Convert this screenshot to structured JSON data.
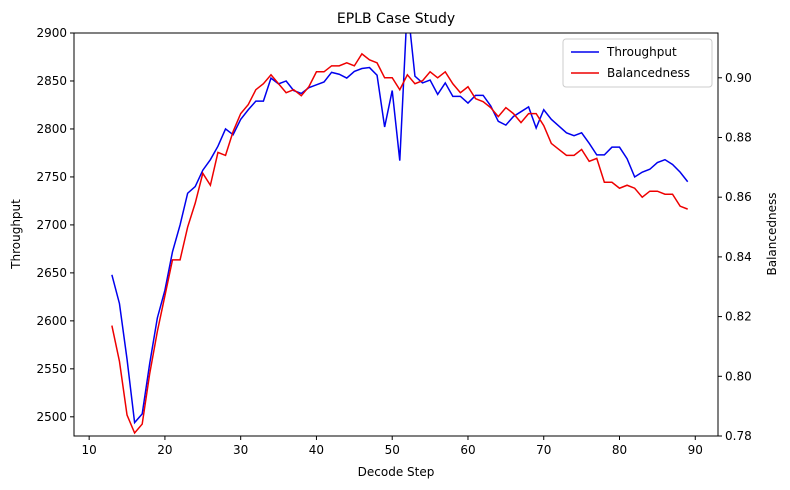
{
  "chart_data": {
    "type": "line",
    "title": "EPLB Case Study",
    "xlabel": "Decode Step",
    "ylabel": "Throughput",
    "y2label": "Balancedness",
    "xlim": [
      8,
      93
    ],
    "ylim": [
      2480,
      2900
    ],
    "y2lim": [
      0.78,
      0.915
    ],
    "xticks": [
      10,
      20,
      30,
      40,
      50,
      60,
      70,
      80,
      90
    ],
    "yticks": [
      2500,
      2550,
      2600,
      2650,
      2700,
      2750,
      2800,
      2850,
      2900
    ],
    "y2ticks": [
      0.78,
      0.8,
      0.82,
      0.84,
      0.86,
      0.88,
      0.9
    ],
    "y2tick_labels": [
      "0.78",
      "0.80",
      "0.82",
      "0.84",
      "0.86",
      "0.88",
      "0.90"
    ],
    "legend": "top-right",
    "grid": false,
    "x": [
      13,
      14,
      15,
      16,
      17,
      18,
      19,
      20,
      21,
      22,
      23,
      24,
      25,
      26,
      27,
      28,
      29,
      30,
      31,
      32,
      33,
      34,
      35,
      36,
      37,
      38,
      39,
      40,
      41,
      42,
      43,
      44,
      45,
      46,
      47,
      48,
      49,
      50,
      51,
      52,
      53,
      54,
      55,
      56,
      57,
      58,
      59,
      60,
      61,
      62,
      63,
      64,
      65,
      66,
      67,
      68,
      69,
      70,
      71,
      72,
      73,
      74,
      75,
      76,
      77,
      78,
      79,
      80,
      81,
      82,
      83,
      84,
      85,
      86,
      87,
      88,
      89
    ],
    "series": [
      {
        "name": "Throughput",
        "axis": "left",
        "color": "#0000ee",
        "values": [
          2648,
          2618,
          2560,
          2494,
          2503,
          2556,
          2603,
          2632,
          2672,
          2700,
          2733,
          2740,
          2757,
          2768,
          2782,
          2800,
          2794,
          2810,
          2820,
          2829,
          2829,
          2853,
          2847,
          2850,
          2840,
          2837,
          2843,
          2846,
          2849,
          2859,
          2857,
          2853,
          2860,
          2863,
          2864,
          2856,
          2802,
          2840,
          2767,
          2930,
          2855,
          2848,
          2851,
          2836,
          2848,
          2834,
          2834,
          2827,
          2835,
          2835,
          2824,
          2808,
          2804,
          2813,
          2818,
          2823,
          2801,
          2820,
          2810,
          2803,
          2796,
          2793,
          2796,
          2785,
          2773,
          2773,
          2781,
          2781,
          2769,
          2750,
          2755,
          2758,
          2765,
          2768,
          2763,
          2755,
          2745
        ]
      },
      {
        "name": "Balancedness",
        "axis": "right",
        "color": "#ee0000",
        "values": [
          0.817,
          0.805,
          0.787,
          0.781,
          0.784,
          0.801,
          0.815,
          0.827,
          0.839,
          0.839,
          0.85,
          0.858,
          0.868,
          0.864,
          0.875,
          0.874,
          0.882,
          0.888,
          0.891,
          0.896,
          0.898,
          0.901,
          0.898,
          0.895,
          0.896,
          0.894,
          0.897,
          0.902,
          0.902,
          0.904,
          0.904,
          0.905,
          0.904,
          0.908,
          0.906,
          0.905,
          0.9,
          0.9,
          0.896,
          0.901,
          0.898,
          0.899,
          0.902,
          0.9,
          0.902,
          0.898,
          0.895,
          0.897,
          0.893,
          0.892,
          0.89,
          0.887,
          0.89,
          0.888,
          0.885,
          0.888,
          0.888,
          0.884,
          0.878,
          0.876,
          0.874,
          0.874,
          0.876,
          0.872,
          0.873,
          0.865,
          0.865,
          0.863,
          0.864,
          0.863,
          0.86,
          0.862,
          0.862,
          0.861,
          0.861,
          0.857,
          0.856
        ]
      }
    ]
  }
}
